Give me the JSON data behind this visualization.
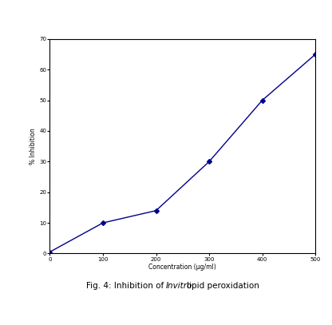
{
  "x": [
    0,
    100,
    200,
    300,
    400,
    500
  ],
  "y": [
    0.5,
    10,
    14,
    30,
    50,
    65
  ],
  "xlabel": "Concentration (µg/ml)",
  "ylabel": "% Inhibition",
  "xlim": [
    0,
    500
  ],
  "ylim": [
    0,
    70
  ],
  "xticks": [
    0,
    100,
    200,
    300,
    400,
    500
  ],
  "yticks": [
    0,
    10,
    20,
    30,
    40,
    50,
    60,
    70
  ],
  "line_color": "#00008B",
  "marker": "D",
  "marker_size": 3,
  "line_width": 1.0,
  "bg_color": "#ffffff",
  "caption_normal1": "Fig. 4: Inhibition of ",
  "caption_italic": "Invitro",
  "caption_normal2": " lipid peroxidation",
  "axis_label_fontsize": 5.5,
  "tick_fontsize": 5,
  "caption_fontsize": 7.5
}
